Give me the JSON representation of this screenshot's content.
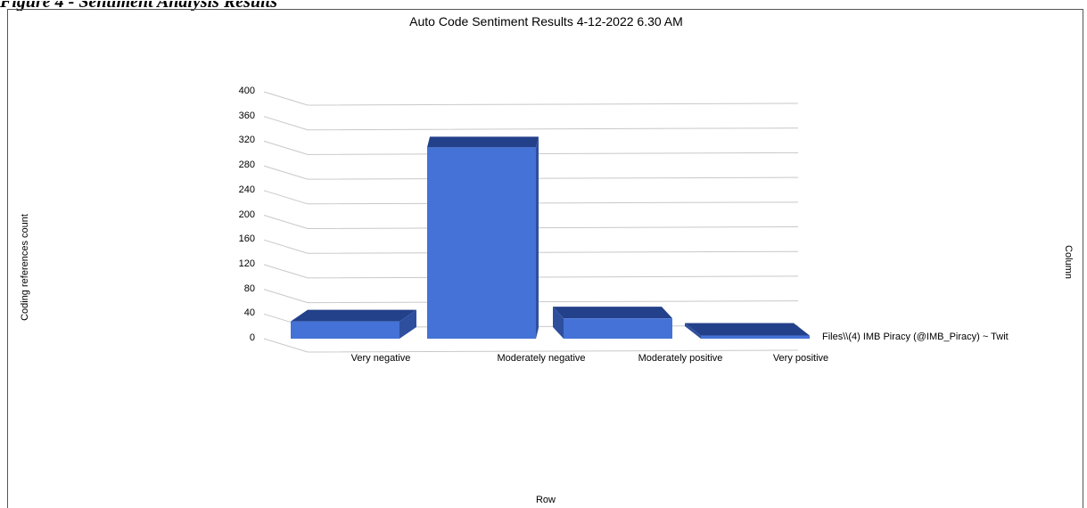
{
  "figure": {
    "caption_fragment": "Figure 4 - Sentiment Analysis Results"
  },
  "chart_data": {
    "type": "bar",
    "title": "Auto Code Sentiment Results 4-12-2022 6.30 AM",
    "xlabel": "Row",
    "ylabel": "Coding references count",
    "zlabel": "Column",
    "categories": [
      "Very negative",
      "Moderately negative",
      "Moderately positive",
      "Very positive"
    ],
    "series": [
      {
        "name": "Files\\\\(4) IMB Piracy (@IMB_Piracy) ~ Twit",
        "values": [
          28,
          310,
          33,
          5
        ]
      }
    ],
    "ylim": [
      0,
      400
    ],
    "yticks": [
      "400",
      "360",
      "320",
      "280",
      "240",
      "200",
      "160",
      "120",
      "80",
      "40",
      "0"
    ],
    "grid": true,
    "colors": {
      "front": "#4472d6",
      "side": "#2e4f9e",
      "top": "#23408a",
      "grid": "#c8c8c8"
    }
  }
}
